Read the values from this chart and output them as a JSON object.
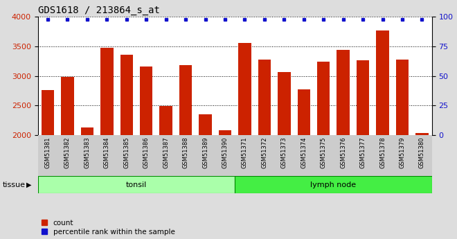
{
  "title": "GDS1618 / 213864_s_at",
  "samples": [
    "GSM51381",
    "GSM51382",
    "GSM51383",
    "GSM51384",
    "GSM51385",
    "GSM51386",
    "GSM51387",
    "GSM51388",
    "GSM51389",
    "GSM51390",
    "GSM51371",
    "GSM51372",
    "GSM51373",
    "GSM51374",
    "GSM51375",
    "GSM51376",
    "GSM51377",
    "GSM51378",
    "GSM51379",
    "GSM51380"
  ],
  "counts": [
    2760,
    2980,
    2130,
    3470,
    3360,
    3160,
    2490,
    3180,
    2350,
    2080,
    3560,
    3270,
    3060,
    2770,
    3240,
    3440,
    3260,
    3770,
    3270,
    2030
  ],
  "bar_color": "#cc2200",
  "percentile_color": "#1111cc",
  "ylim_left": [
    2000,
    4000
  ],
  "ylim_right": [
    0,
    100
  ],
  "yticks_left": [
    2000,
    2500,
    3000,
    3500,
    4000
  ],
  "yticks_right": [
    0,
    25,
    50,
    75,
    100
  ],
  "tissue_groups": [
    {
      "label": "tonsil",
      "start": 0,
      "end": 10,
      "color": "#aaffaa"
    },
    {
      "label": "lymph node",
      "start": 10,
      "end": 20,
      "color": "#44ee44"
    }
  ],
  "tissue_label": "tissue",
  "legend_count_label": "count",
  "legend_percentile_label": "percentile rank within the sample",
  "fig_bg_color": "#dddddd",
  "plot_bg_color": "#ffffff",
  "xtick_bg_color": "#cccccc"
}
